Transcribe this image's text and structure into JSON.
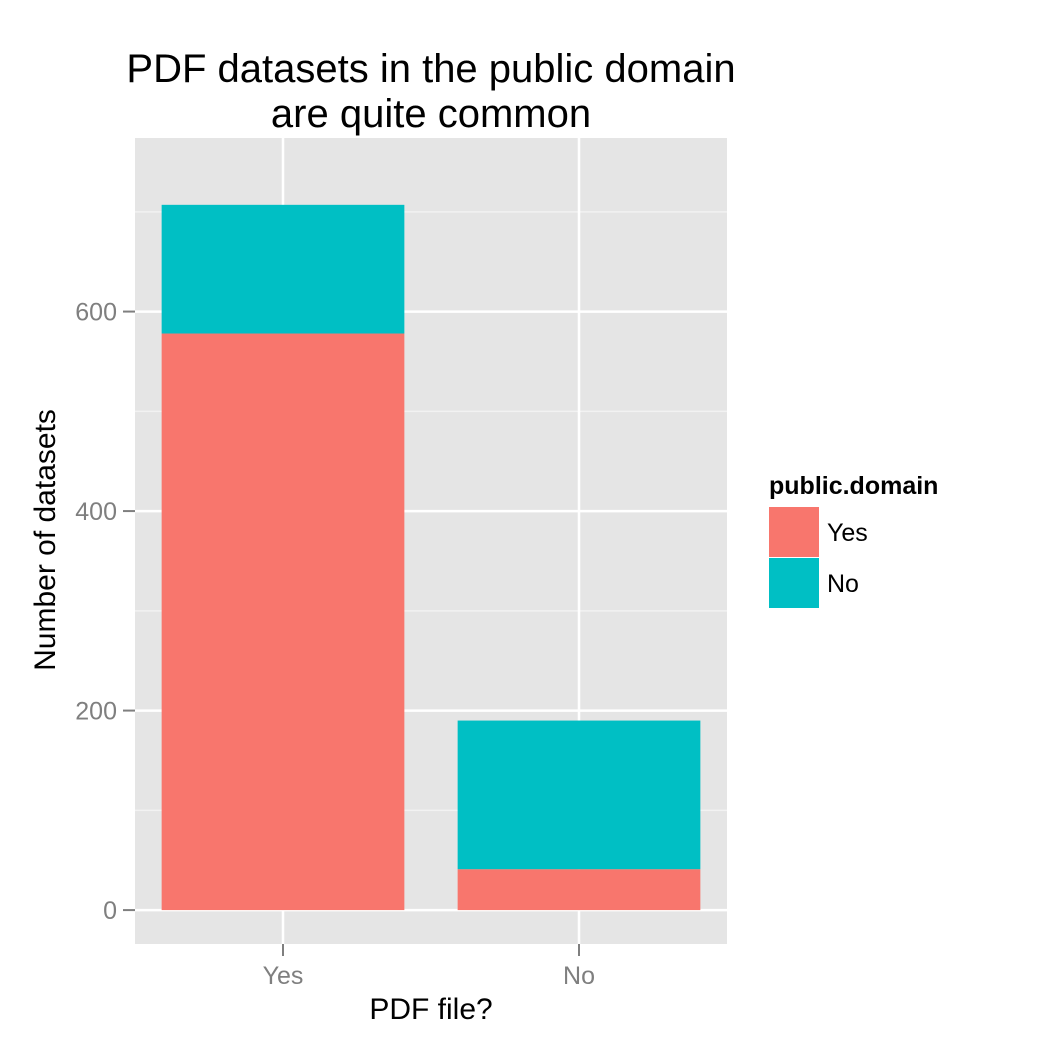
{
  "chart_data": {
    "type": "bar",
    "stacked": true,
    "title_lines": [
      "PDF datasets in the public domain",
      "are quite common"
    ],
    "xlabel": "PDF file?",
    "ylabel": "Number of datasets",
    "categories": [
      "Yes",
      "No"
    ],
    "series": [
      {
        "name": "Yes",
        "values": [
          578,
          41
        ],
        "color": "#F8766D"
      },
      {
        "name": "No",
        "values": [
          129,
          149
        ],
        "color": "#00BFC4"
      }
    ],
    "ylim": [
      -34,
      774
    ],
    "yticks": [
      0,
      200,
      400,
      600
    ],
    "ytick_labels": [
      "0",
      "200",
      "400",
      "600"
    ],
    "grid": true,
    "panel_color": "#E5E5E5",
    "legend": {
      "title": "public.domain",
      "placement": "right",
      "entries": [
        "Yes",
        "No"
      ]
    }
  }
}
